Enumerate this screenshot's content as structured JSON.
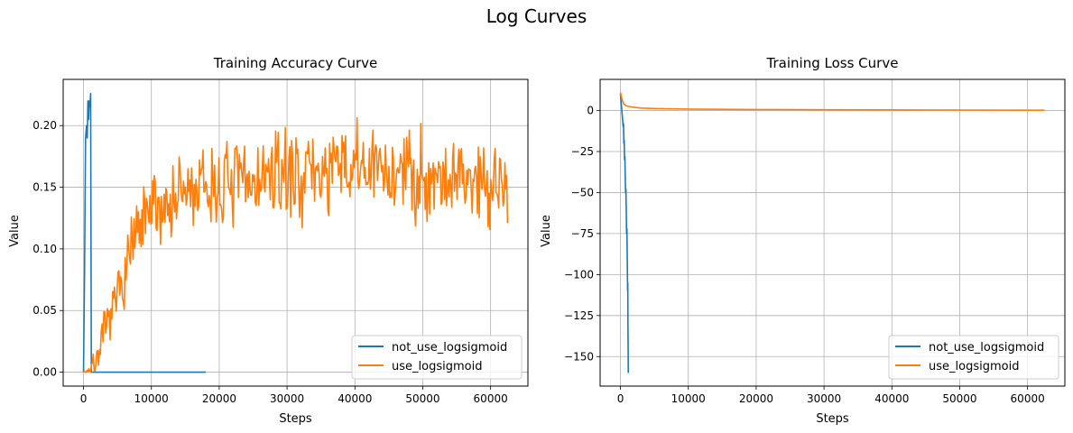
{
  "figure": {
    "title": "Log Curves"
  },
  "colors": {
    "series_blue": "#1f77b4",
    "series_orange": "#ff7f0e",
    "grid": "#b0b0b0",
    "axes": "#000000"
  },
  "chart_data": [
    {
      "type": "line",
      "title": "Training Accuracy Curve",
      "xlabel": "Steps",
      "ylabel": "Value",
      "xlim": [
        -3000,
        65500
      ],
      "ylim": [
        -0.0113,
        0.2375
      ],
      "xticks": [
        0,
        10000,
        20000,
        30000,
        40000,
        50000,
        60000
      ],
      "xtick_labels": [
        "0",
        "10000",
        "20000",
        "30000",
        "40000",
        "50000",
        "60000"
      ],
      "yticks": [
        0.0,
        0.05,
        0.1,
        0.15,
        0.2
      ],
      "ytick_labels": [
        "0.00",
        "0.05",
        "0.10",
        "0.15",
        "0.20"
      ],
      "grid": true,
      "legend_position": "lower-right",
      "series": [
        {
          "name": "not_use_logsigmoid",
          "color": "#1f77b4",
          "points": [
            [
              0,
              0.0
            ],
            [
              150,
              0.08
            ],
            [
              300,
              0.19
            ],
            [
              450,
              0.2
            ],
            [
              550,
              0.19
            ],
            [
              650,
              0.22
            ],
            [
              750,
              0.205
            ],
            [
              850,
              0.22
            ],
            [
              950,
              0.215
            ],
            [
              1050,
              0.226
            ],
            [
              1150,
              0.0
            ],
            [
              18000,
              0.0
            ]
          ]
        },
        {
          "name": "use_logsigmoid",
          "color": "#ff7f0e",
          "generator": {
            "x_start": 0,
            "x_end": 62500,
            "n_points": 480,
            "seed": 7,
            "trend": [
              [
                0,
                0.0
              ],
              [
                1500,
                0.005
              ],
              [
                3000,
                0.03
              ],
              [
                5000,
                0.06
              ],
              [
                7000,
                0.1
              ],
              [
                10000,
                0.13
              ],
              [
                15000,
                0.145
              ],
              [
                20000,
                0.15
              ],
              [
                30000,
                0.16
              ],
              [
                40000,
                0.165
              ],
              [
                50000,
                0.16
              ],
              [
                62500,
                0.155
              ]
            ],
            "noise": [
              [
                0,
                0.002
              ],
              [
                3000,
                0.008
              ],
              [
                8000,
                0.015
              ],
              [
                15000,
                0.017
              ],
              [
                62500,
                0.018
              ]
            ]
          }
        }
      ]
    },
    {
      "type": "line",
      "title": "Training Loss Curve",
      "xlabel": "Steps",
      "ylabel": "Value",
      "xlim": [
        -3000,
        65500
      ],
      "ylim": [
        -168,
        19
      ],
      "xticks": [
        0,
        10000,
        20000,
        30000,
        40000,
        50000,
        60000
      ],
      "xtick_labels": [
        "0",
        "10000",
        "20000",
        "30000",
        "40000",
        "50000",
        "60000"
      ],
      "yticks": [
        0,
        -25,
        -50,
        -75,
        -100,
        -125,
        -150
      ],
      "ytick_labels": [
        "0",
        "−25",
        "−50",
        "−75",
        "−100",
        "−125",
        "−150"
      ],
      "grid": true,
      "legend_position": "lower-right",
      "series": [
        {
          "name": "not_use_logsigmoid",
          "color": "#1f77b4",
          "points": [
            [
              0,
              10
            ],
            [
              100,
              5
            ],
            [
              200,
              0
            ],
            [
              300,
              -5
            ],
            [
              400,
              -10
            ],
            [
              450,
              -8
            ],
            [
              500,
              -20
            ],
            [
              550,
              -18
            ],
            [
              600,
              -30
            ],
            [
              650,
              -28
            ],
            [
              700,
              -40
            ],
            [
              750,
              -50
            ],
            [
              800,
              -48
            ],
            [
              850,
              -60
            ],
            [
              900,
              -75
            ],
            [
              950,
              -72
            ],
            [
              1000,
              -90
            ],
            [
              1050,
              -110
            ],
            [
              1080,
              -105
            ],
            [
              1100,
              -130
            ],
            [
              1130,
              -145
            ],
            [
              1150,
              -160
            ]
          ]
        },
        {
          "name": "use_logsigmoid",
          "color": "#ff7f0e",
          "points": [
            [
              0,
              11
            ],
            [
              150,
              8
            ],
            [
              300,
              6
            ],
            [
              500,
              4
            ],
            [
              800,
              3
            ],
            [
              1200,
              2.5
            ],
            [
              2000,
              2
            ],
            [
              3000,
              1.5
            ],
            [
              5000,
              1.2
            ],
            [
              8000,
              1
            ],
            [
              12000,
              0.8
            ],
            [
              20000,
              0.6
            ],
            [
              30000,
              0.5
            ],
            [
              40000,
              0.4
            ],
            [
              50000,
              0.3
            ],
            [
              62500,
              0.2
            ]
          ]
        }
      ]
    }
  ]
}
